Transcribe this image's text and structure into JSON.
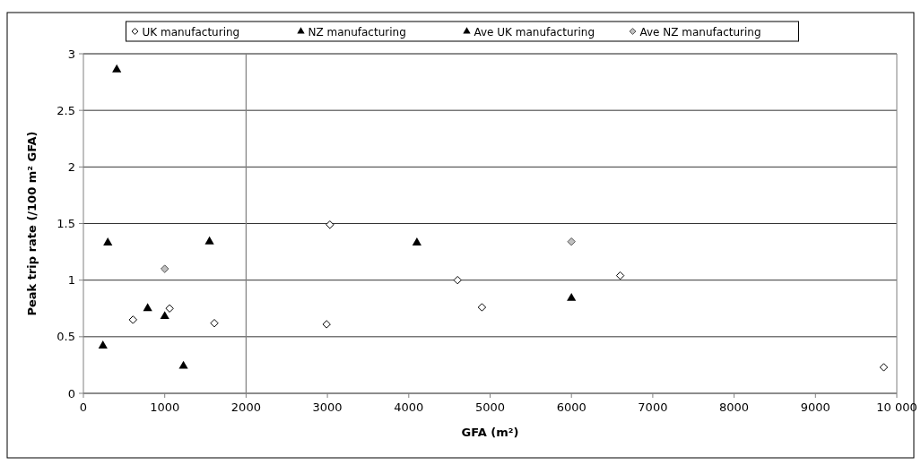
{
  "chart_data": {
    "type": "scatter",
    "xlabel": "GFA (m²)",
    "ylabel": "Peak trip rate (/100 m² GFA)",
    "xlim": [
      0,
      10000
    ],
    "xticks": [
      0,
      1000,
      2000,
      3000,
      4000,
      5000,
      6000,
      7000,
      8000,
      9000,
      {
        "value": 10000,
        "label": "10 000"
      }
    ],
    "ylim": [
      0,
      3
    ],
    "yticks": [
      0,
      0.5,
      1,
      1.5,
      2,
      2.5,
      3
    ],
    "grid": "y",
    "legend": "top",
    "ref_lines": [
      {
        "axis": "x",
        "value": 2000,
        "color": "#808080"
      }
    ],
    "series": [
      {
        "name": "UK manufacturing",
        "color": "#ffffff",
        "marker": "diamond",
        "x": [
          610,
          1060,
          1610,
          3030,
          2990,
          4600,
          4900,
          6600,
          9840
        ],
        "values": [
          0.65,
          0.75,
          0.62,
          1.49,
          0.61,
          1.0,
          0.76,
          1.04,
          0.23
        ]
      },
      {
        "name": "NZ manufacturing",
        "color": "#000000",
        "marker": "triangle",
        "x": [
          410,
          300,
          1550,
          790,
          240,
          1230,
          4100
        ],
        "values": [
          2.86,
          1.33,
          1.34,
          0.75,
          0.42,
          0.24,
          1.33
        ]
      },
      {
        "name": "Ave UK manufacturing",
        "color": "#000000",
        "marker": "triangle",
        "x": [
          1000,
          6000
        ],
        "values": [
          0.68,
          0.84
        ]
      },
      {
        "name": "Ave NZ manufacturing",
        "color": "#c0c0c0",
        "marker": "diamond",
        "x": [
          1000,
          6000
        ],
        "values": [
          1.1,
          1.34
        ]
      }
    ]
  }
}
